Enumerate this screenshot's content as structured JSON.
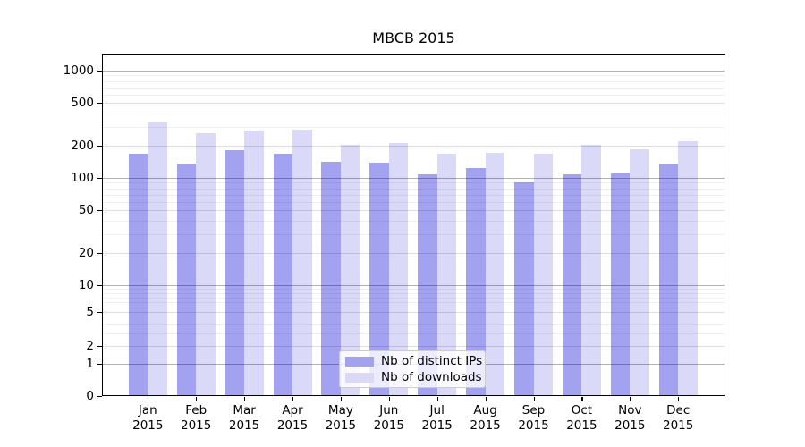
{
  "title": "MBCB 2015",
  "chart_data": {
    "type": "bar",
    "title": "MBCB 2015",
    "categories": [
      "Jan 2015",
      "Feb 2015",
      "Mar 2015",
      "Apr 2015",
      "May 2015",
      "Jun 2015",
      "Jul 2015",
      "Aug 2015",
      "Sep 2015",
      "Oct 2015",
      "Nov 2015",
      "Dec 2015"
    ],
    "series": [
      {
        "name": "Nb of distinct IPs",
        "color": "#a2a2f0",
        "values": [
          168,
          136,
          181,
          167,
          141,
          139,
          108,
          124,
          91,
          109,
          110,
          133
        ]
      },
      {
        "name": "Nb of downloads",
        "color": "#dadaf8",
        "values": [
          335,
          262,
          275,
          284,
          203,
          210,
          167,
          171,
          167,
          203,
          185,
          218
        ]
      }
    ],
    "xlabel": "",
    "ylabel": "",
    "yscale": "symlog",
    "y_ticks": [
      0,
      1,
      2,
      5,
      10,
      20,
      50,
      100,
      200,
      500,
      1000
    ],
    "ylim": [
      0,
      1400
    ],
    "grid": true,
    "legend_position": "lower center"
  }
}
